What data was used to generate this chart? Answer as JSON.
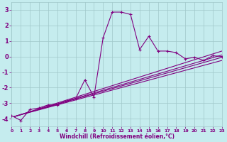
{
  "xlabel": "Windchill (Refroidissement éolien,°C)",
  "xlim": [
    0,
    23
  ],
  "ylim": [
    -4.5,
    3.5
  ],
  "yticks": [
    -4,
    -3,
    -2,
    -1,
    0,
    1,
    2,
    3
  ],
  "bg_color": "#c5ecee",
  "grid_color": "#a0c8ca",
  "line_color": "#800080",
  "series": [
    [
      0,
      -3.8
    ],
    [
      1,
      -4.1
    ],
    [
      2,
      -3.4
    ],
    [
      3,
      -3.3
    ],
    [
      4,
      -3.1
    ],
    [
      5,
      -3.1
    ],
    [
      6,
      -2.85
    ],
    [
      7,
      -2.7
    ],
    [
      8,
      -1.5
    ],
    [
      9,
      -2.6
    ],
    [
      10,
      1.2
    ],
    [
      11,
      2.85
    ],
    [
      12,
      2.85
    ],
    [
      13,
      2.7
    ],
    [
      14,
      0.45
    ],
    [
      15,
      1.3
    ],
    [
      16,
      0.35
    ],
    [
      17,
      0.35
    ],
    [
      18,
      0.25
    ],
    [
      19,
      -0.15
    ],
    [
      20,
      -0.05
    ],
    [
      21,
      -0.25
    ],
    [
      22,
      0.05
    ],
    [
      23,
      0.0
    ]
  ],
  "fan_lines": [
    {
      "x0": 0.3,
      "y0": -3.85,
      "x1": 23,
      "y1": -0.25
    },
    {
      "x0": 0.3,
      "y0": -3.85,
      "x1": 23,
      "y1": -0.05
    },
    {
      "x0": 0.3,
      "y0": -3.85,
      "x1": 23,
      "y1": 0.1
    },
    {
      "x0": 0.3,
      "y0": -3.85,
      "x1": 23,
      "y1": 0.35
    }
  ]
}
